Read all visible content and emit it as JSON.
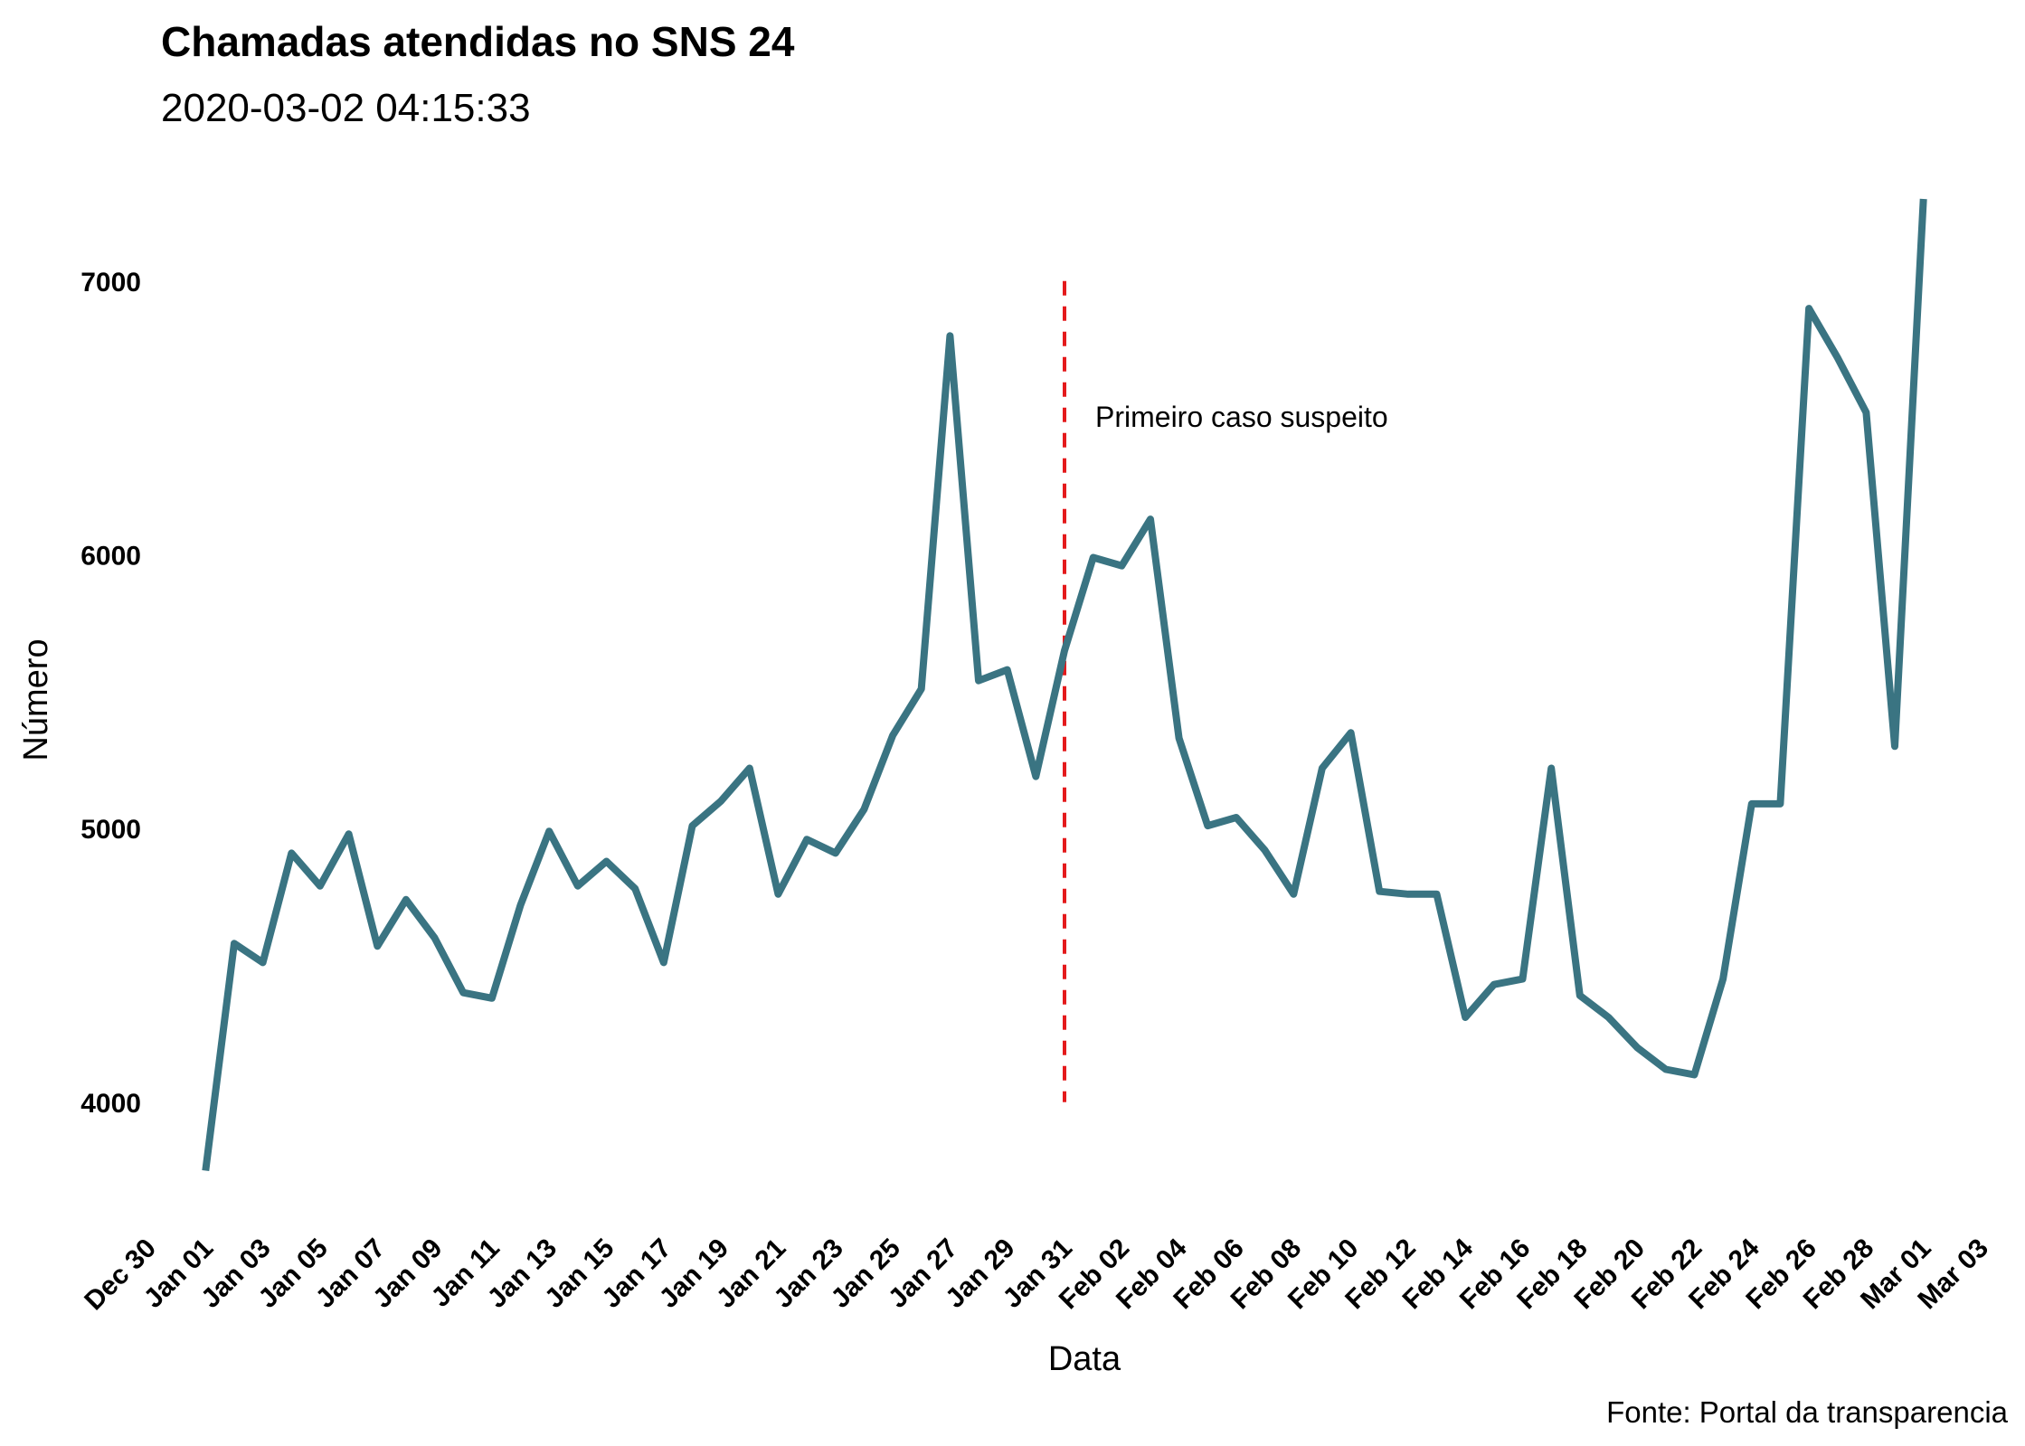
{
  "chart_data": {
    "type": "line",
    "title": "Chamadas atendidas no SNS 24",
    "subtitle": "2020-03-02 04:15:33",
    "xlabel": "Data",
    "ylabel": "Número",
    "caption": "Fonte: Portal da transparencia",
    "annotation": {
      "label": "Primeiro caso suspeito",
      "x": "2020-01-31",
      "y": 6500
    },
    "vline": {
      "x": "2020-01-31",
      "y_from": 4000,
      "y_to": 7000,
      "color": "#e41a1c",
      "style": "dashed"
    },
    "line_color": "#3a7482",
    "grid": false,
    "xlim": [
      "2019-12-30",
      "2020-03-03"
    ],
    "ylim": [
      3550,
      7300
    ],
    "y_ticks": [
      4000,
      5000,
      6000,
      7000
    ],
    "x_ticks": [
      {
        "date": "2019-12-30",
        "label": "Dec 30"
      },
      {
        "date": "2020-01-01",
        "label": "Jan 01"
      },
      {
        "date": "2020-01-03",
        "label": "Jan 03"
      },
      {
        "date": "2020-01-05",
        "label": "Jan 05"
      },
      {
        "date": "2020-01-07",
        "label": "Jan 07"
      },
      {
        "date": "2020-01-09",
        "label": "Jan 09"
      },
      {
        "date": "2020-01-11",
        "label": "Jan 11"
      },
      {
        "date": "2020-01-13",
        "label": "Jan 13"
      },
      {
        "date": "2020-01-15",
        "label": "Jan 15"
      },
      {
        "date": "2020-01-17",
        "label": "Jan 17"
      },
      {
        "date": "2020-01-19",
        "label": "Jan 19"
      },
      {
        "date": "2020-01-21",
        "label": "Jan 21"
      },
      {
        "date": "2020-01-23",
        "label": "Jan 23"
      },
      {
        "date": "2020-01-25",
        "label": "Jan 25"
      },
      {
        "date": "2020-01-27",
        "label": "Jan 27"
      },
      {
        "date": "2020-01-29",
        "label": "Jan 29"
      },
      {
        "date": "2020-01-31",
        "label": "Jan 31"
      },
      {
        "date": "2020-02-02",
        "label": "Feb 02"
      },
      {
        "date": "2020-02-04",
        "label": "Feb 04"
      },
      {
        "date": "2020-02-06",
        "label": "Feb 06"
      },
      {
        "date": "2020-02-08",
        "label": "Feb 08"
      },
      {
        "date": "2020-02-10",
        "label": "Feb 10"
      },
      {
        "date": "2020-02-12",
        "label": "Feb 12"
      },
      {
        "date": "2020-02-14",
        "label": "Feb 14"
      },
      {
        "date": "2020-02-16",
        "label": "Feb 16"
      },
      {
        "date": "2020-02-18",
        "label": "Feb 18"
      },
      {
        "date": "2020-02-20",
        "label": "Feb 20"
      },
      {
        "date": "2020-02-22",
        "label": "Feb 22"
      },
      {
        "date": "2020-02-24",
        "label": "Feb 24"
      },
      {
        "date": "2020-02-26",
        "label": "Feb 26"
      },
      {
        "date": "2020-02-28",
        "label": "Feb 28"
      },
      {
        "date": "2020-03-01",
        "label": "Mar 01"
      },
      {
        "date": "2020-03-03",
        "label": "Mar 03"
      }
    ],
    "series": [
      {
        "points": [
          [
            "2020-01-01",
            3750
          ],
          [
            "2020-01-02",
            4580
          ],
          [
            "2020-01-03",
            4510
          ],
          [
            "2020-01-04",
            4910
          ],
          [
            "2020-01-05",
            4790
          ],
          [
            "2020-01-06",
            4980
          ],
          [
            "2020-01-07",
            4570
          ],
          [
            "2020-01-08",
            4740
          ],
          [
            "2020-01-09",
            4600
          ],
          [
            "2020-01-10",
            4400
          ],
          [
            "2020-01-11",
            4380
          ],
          [
            "2020-01-12",
            4720
          ],
          [
            "2020-01-13",
            4990
          ],
          [
            "2020-01-14",
            4790
          ],
          [
            "2020-01-15",
            4880
          ],
          [
            "2020-01-16",
            4780
          ],
          [
            "2020-01-17",
            4510
          ],
          [
            "2020-01-18",
            5010
          ],
          [
            "2020-01-19",
            5100
          ],
          [
            "2020-01-20",
            5220
          ],
          [
            "2020-01-21",
            4760
          ],
          [
            "2020-01-22",
            4960
          ],
          [
            "2020-01-23",
            4910
          ],
          [
            "2020-01-24",
            5070
          ],
          [
            "2020-01-25",
            5340
          ],
          [
            "2020-01-26",
            5510
          ],
          [
            "2020-01-27",
            6800
          ],
          [
            "2020-01-28",
            5540
          ],
          [
            "2020-01-29",
            5580
          ],
          [
            "2020-01-30",
            5190
          ],
          [
            "2020-01-31",
            5650
          ],
          [
            "2020-02-01",
            5990
          ],
          [
            "2020-02-02",
            5960
          ],
          [
            "2020-02-03",
            6130
          ],
          [
            "2020-02-04",
            5330
          ],
          [
            "2020-02-05",
            5010
          ],
          [
            "2020-02-06",
            5040
          ],
          [
            "2020-02-07",
            4920
          ],
          [
            "2020-02-08",
            4760
          ],
          [
            "2020-02-09",
            5220
          ],
          [
            "2020-02-10",
            5350
          ],
          [
            "2020-02-11",
            4770
          ],
          [
            "2020-02-12",
            4760
          ],
          [
            "2020-02-13",
            4760
          ],
          [
            "2020-02-14",
            4310
          ],
          [
            "2020-02-15",
            4430
          ],
          [
            "2020-02-16",
            4450
          ],
          [
            "2020-02-17",
            5220
          ],
          [
            "2020-02-18",
            4390
          ],
          [
            "2020-02-19",
            4310
          ],
          [
            "2020-02-20",
            4200
          ],
          [
            "2020-02-21",
            4120
          ],
          [
            "2020-02-22",
            4100
          ],
          [
            "2020-02-23",
            4450
          ],
          [
            "2020-02-24",
            5090
          ],
          [
            "2020-02-25",
            5090
          ],
          [
            "2020-02-26",
            6900
          ],
          [
            "2020-02-27",
            6720
          ],
          [
            "2020-02-28",
            6520
          ],
          [
            "2020-02-29",
            5300
          ],
          [
            "2020-03-01",
            7300
          ]
        ]
      }
    ]
  }
}
